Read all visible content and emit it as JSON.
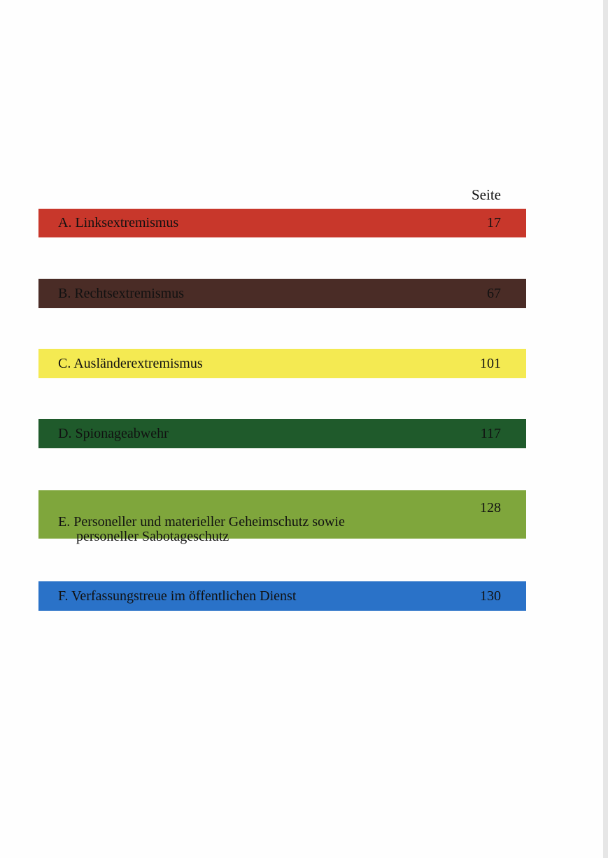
{
  "header": {
    "page_column_label": "Seite"
  },
  "entries": [
    {
      "label": "A. Linksextremismus",
      "page": "17",
      "color": "#c8372b"
    },
    {
      "label": "B. Rechtsextremismus",
      "page": "67",
      "color": "#4a2c26"
    },
    {
      "label": "C. Ausländerextremismus",
      "page": "101",
      "color": "#f4ea52"
    },
    {
      "label": "D. Spionageabwehr",
      "page": "117",
      "color": "#1f5a2b"
    },
    {
      "label": "E. Personeller und materieller Geheimschutz sowie",
      "label_line2": "personeller Sabotageschutz",
      "page": "128",
      "color": "#7fa63c"
    },
    {
      "label": "F. Verfassungstreue im öffentlichen Dienst",
      "page": "130",
      "color": "#2a72c8"
    }
  ]
}
